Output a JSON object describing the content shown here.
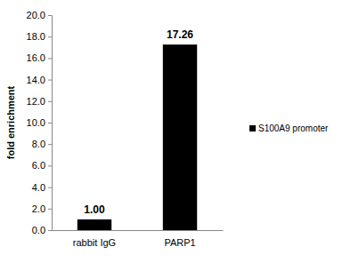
{
  "chart_data": {
    "type": "bar",
    "ylabel": "fold enrichment",
    "categories": [
      "rabbit IgG",
      "PARP1"
    ],
    "series": [
      {
        "name": "S100A9 promoter",
        "color": "#000000",
        "values": [
          1.0,
          17.26
        ],
        "value_labels": [
          "1.00",
          "17.26"
        ]
      }
    ],
    "ylim": [
      0,
      20
    ],
    "yticks": [
      {
        "value": 0,
        "label": "0.0"
      },
      {
        "value": 2,
        "label": "2.0"
      },
      {
        "value": 4,
        "label": "4.0"
      },
      {
        "value": 6,
        "label": "6.0"
      },
      {
        "value": 8,
        "label": "8.0"
      },
      {
        "value": 10,
        "label": "10.0"
      },
      {
        "value": 12,
        "label": "12.0"
      },
      {
        "value": 14,
        "label": "14.0"
      },
      {
        "value": 16,
        "label": "16.0"
      },
      {
        "value": 18,
        "label": "18.0"
      },
      {
        "value": 20,
        "label": "20.0"
      }
    ],
    "grid": false,
    "legend": "right",
    "data_labels": true
  }
}
